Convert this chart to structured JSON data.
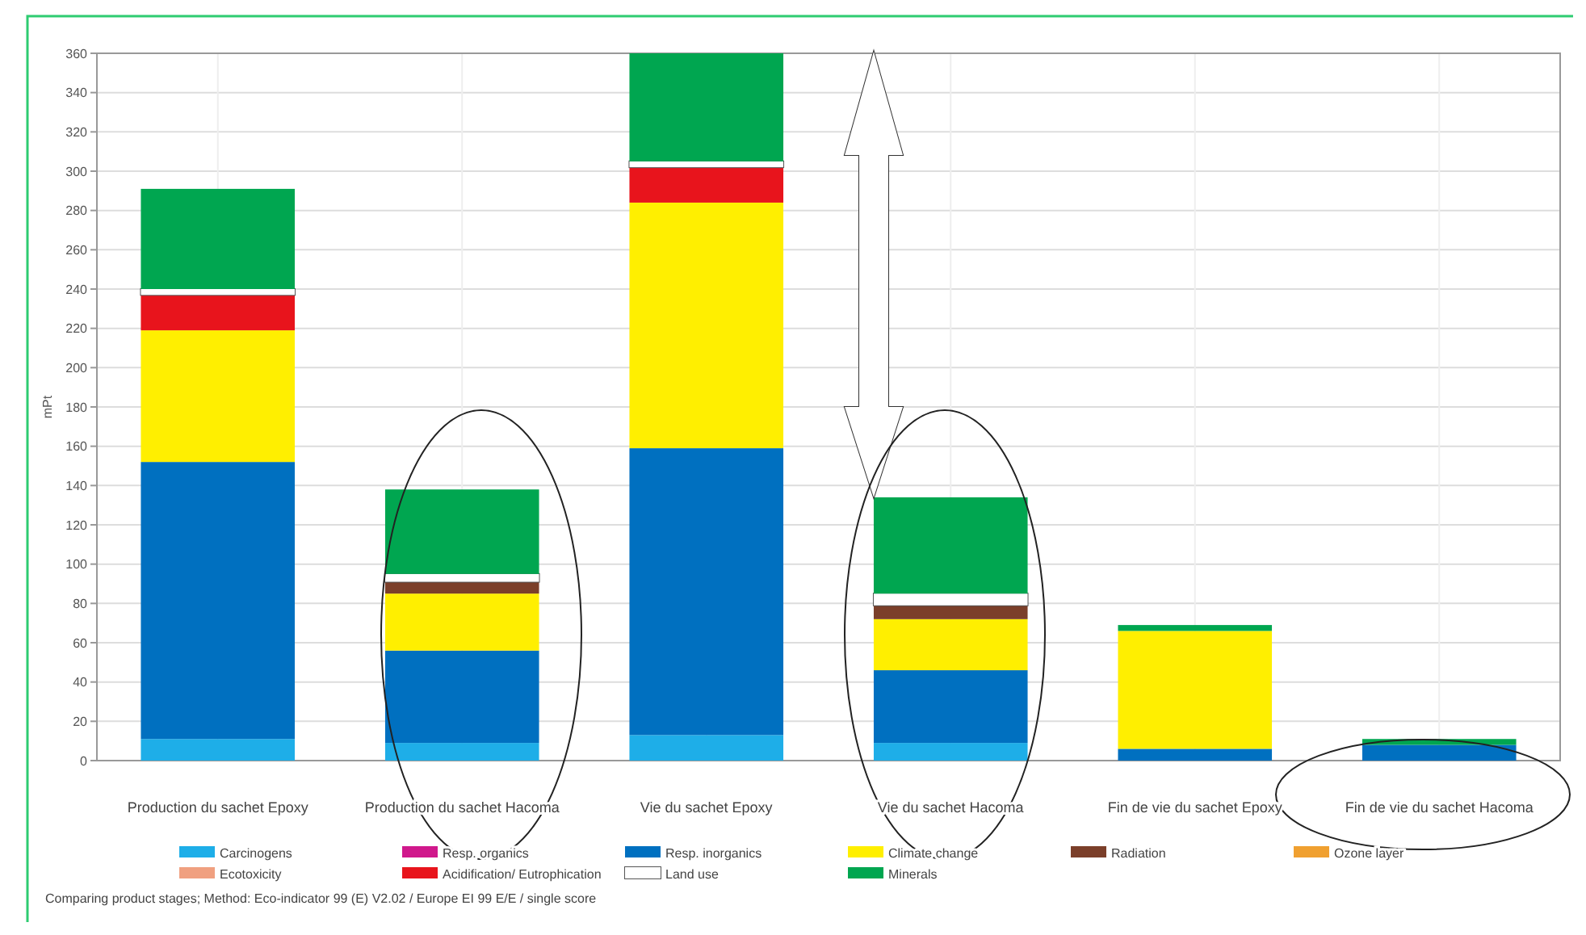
{
  "chart_data": {
    "type": "bar",
    "stacked": true,
    "ylabel": "mPt",
    "categories": [
      "Production du sachet Epoxy",
      "Production du sachet Hacoma",
      "Vie du sachet Epoxy",
      "Vie du sachet Hacoma",
      "Fin de vie du sachet Epoxy",
      "Fin de vie du sachet Hacoma"
    ],
    "series": [
      {
        "name": "Carcinogens",
        "color": "#1eaee8",
        "values": [
          11,
          9,
          13,
          9,
          0,
          0
        ]
      },
      {
        "name": "Resp. organics",
        "color": "#d0188c",
        "values": [
          0,
          0,
          0,
          0,
          0,
          0
        ]
      },
      {
        "name": "Resp. inorganics",
        "color": "#0070c0",
        "values": [
          141,
          47,
          146,
          37,
          6,
          8
        ]
      },
      {
        "name": "Climate change",
        "color": "#ffef00",
        "values": [
          67,
          29,
          125,
          26,
          60,
          0
        ]
      },
      {
        "name": "Radiation",
        "color": "#7b3f2a",
        "values": [
          0,
          6,
          0,
          7,
          0,
          0
        ]
      },
      {
        "name": "Ozone layer",
        "color": "#f0a030",
        "values": [
          0,
          0,
          0,
          0,
          0,
          0
        ]
      },
      {
        "name": "Ecotoxicity",
        "color": "#f0a080",
        "values": [
          0,
          0,
          0,
          0,
          0,
          0
        ]
      },
      {
        "name": "Acidification/ Eutrophication",
        "color": "#e8141c",
        "values": [
          18,
          0,
          18,
          0,
          0,
          0
        ]
      },
      {
        "name": "Land use",
        "color": "#ffffff",
        "values": [
          3,
          4,
          3,
          6,
          0,
          0
        ]
      },
      {
        "name": "Minerals",
        "color": "#00a650",
        "values": [
          51,
          43,
          55,
          49,
          3,
          3
        ]
      }
    ],
    "ylim": [
      0,
      360
    ],
    "yticks": [
      0,
      20,
      40,
      60,
      80,
      100,
      120,
      140,
      160,
      180,
      200,
      220,
      240,
      260,
      280,
      300,
      320,
      340,
      360
    ],
    "grid": true,
    "legend": "bottom",
    "annotations": [
      "Comparing product stages; Method: Eco-indicator 99 (E) V2.02 / Europe EI 99 E/E / single score"
    ]
  }
}
